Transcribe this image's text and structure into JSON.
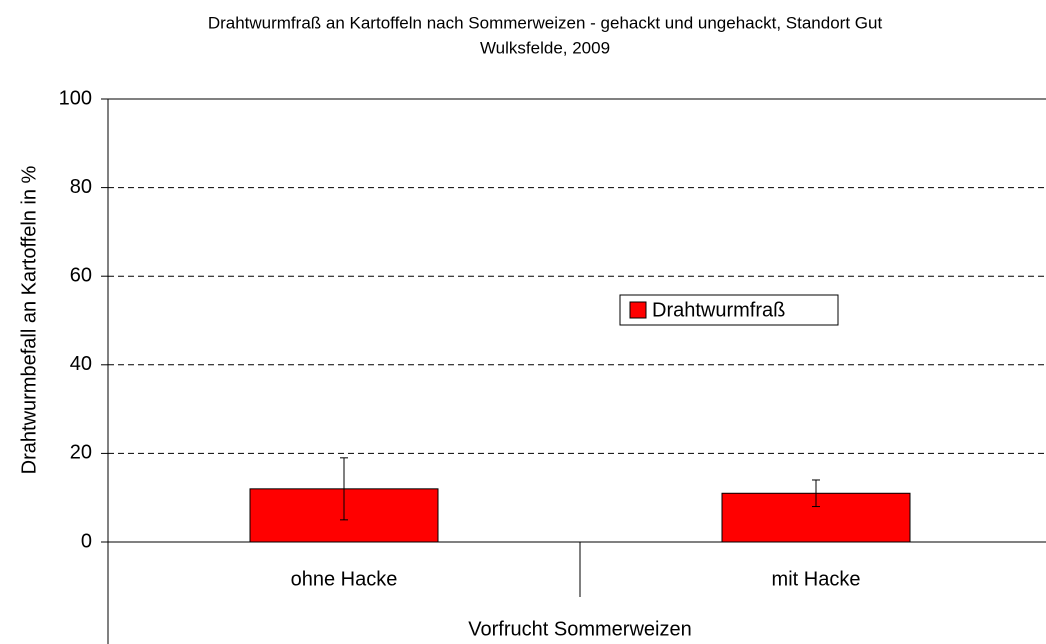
{
  "chart_data": {
    "type": "bar",
    "title": [
      "Drahtwurmfraß an Kartoffeln nach Sommerweizen - gehackt und ungehackt, Standort Gut",
      "Wulksfelde, 2009"
    ],
    "y_label": "Drahtwurmbefall an Kartoffeln in %",
    "x_label": "Vorfrucht Sommerweizen",
    "categories": [
      "ohne Hacke",
      "mit Hacke"
    ],
    "series": [
      {
        "name": "Drahtwurmfraß",
        "color": "#ff0000",
        "values": [
          12,
          11
        ],
        "errors": [
          7,
          3
        ]
      }
    ],
    "ylim": [
      0,
      100
    ],
    "yticks": [
      0,
      20,
      40,
      60,
      80,
      100
    ],
    "grid": true
  }
}
